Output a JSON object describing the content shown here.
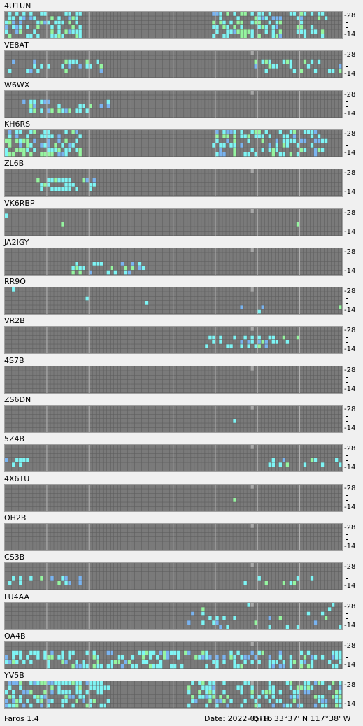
{
  "app": {
    "name": "Faros 1.4"
  },
  "footer": {
    "date": "Date: 2022-05-16",
    "qth": "QTH: 33°37' N  117°38' W"
  },
  "axis": {
    "top": "28",
    "bottom": "14",
    "marks": [
      "-",
      "-"
    ]
  },
  "colors": {
    "background": "#f0f0f0",
    "grid_bg": "#5f5f5f",
    "cell": "#7a7a7a",
    "cell_border": "#949494",
    "hour_line": "#b5b5b5",
    "cyan": "#7ff5f5",
    "green": "#96f5a0",
    "blue": "#7ab4f0",
    "light": "#a8a8a8"
  },
  "beacons": [
    {
      "call": "4U1UN",
      "pattern": "dense-left-right"
    },
    {
      "call": "VE8AT",
      "pattern": "mid-left-right"
    },
    {
      "call": "W6WX",
      "pattern": "sparse-left"
    },
    {
      "call": "KH6RS",
      "pattern": "dense-left-right"
    },
    {
      "call": "ZL6B",
      "pattern": "left-cluster"
    },
    {
      "call": "VK6RBP",
      "pattern": "very-sparse"
    },
    {
      "call": "JA2IGY",
      "pattern": "sparse-mid"
    },
    {
      "call": "RR9O",
      "pattern": "very-sparse"
    },
    {
      "call": "VR2B",
      "pattern": "mid-cluster"
    },
    {
      "call": "4S7B",
      "pattern": "empty"
    },
    {
      "call": "ZS6DN",
      "pattern": "one-point"
    },
    {
      "call": "5Z4B",
      "pattern": "left-right-edge"
    },
    {
      "call": "4X6TU",
      "pattern": "one-point"
    },
    {
      "call": "OH2B",
      "pattern": "empty"
    },
    {
      "call": "CS3B",
      "pattern": "left-right"
    },
    {
      "call": "LU4AA",
      "pattern": "right-spread"
    },
    {
      "call": "OA4B",
      "pattern": "dense"
    },
    {
      "call": "YV5B",
      "pattern": "dense-right"
    }
  ]
}
